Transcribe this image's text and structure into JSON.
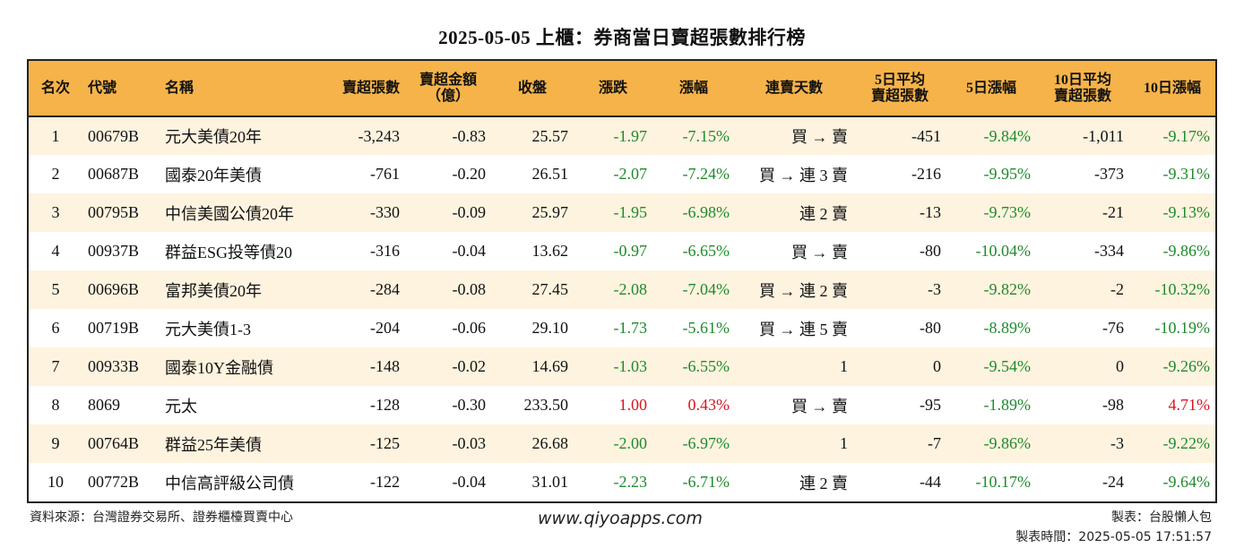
{
  "title": "2025-05-05 上櫃：券商當日賣超張數排行榜",
  "colors": {
    "header_bg": "#f5b34a",
    "row_alt_bg": "#fdf3df",
    "negative": "#1e8a2a",
    "positive": "#d8151c"
  },
  "headers": {
    "rank": "名次",
    "code": "代號",
    "name": "名稱",
    "sell_lots": "賣超張數",
    "sell_amount": "賣超金額\n（億）",
    "close": "收盤",
    "change": "漲跌",
    "change_pct": "漲幅",
    "streak": "連賣天數",
    "avg5_sell": "5日平均\n賣超張數",
    "chg5": "5日漲幅",
    "avg10_sell": "10日平均\n賣超張數",
    "chg10": "10日漲幅"
  },
  "rows": [
    {
      "rank": "1",
      "code": "00679B",
      "name": "元大美債20年",
      "sell_lots": "-3,243",
      "sell_amount": "-0.83",
      "close": "25.57",
      "change": "-1.97",
      "change_pct": "-7.15%",
      "streak": "買 → 賣",
      "avg5_sell": "-451",
      "chg5": "-9.84%",
      "avg10_sell": "-1,011",
      "chg10": "-9.17%"
    },
    {
      "rank": "2",
      "code": "00687B",
      "name": "國泰20年美債",
      "sell_lots": "-761",
      "sell_amount": "-0.20",
      "close": "26.51",
      "change": "-2.07",
      "change_pct": "-7.24%",
      "streak": "買 → 連 3 賣",
      "avg5_sell": "-216",
      "chg5": "-9.95%",
      "avg10_sell": "-373",
      "chg10": "-9.31%"
    },
    {
      "rank": "3",
      "code": "00795B",
      "name": "中信美國公債20年",
      "sell_lots": "-330",
      "sell_amount": "-0.09",
      "close": "25.97",
      "change": "-1.95",
      "change_pct": "-6.98%",
      "streak": "連 2 賣",
      "avg5_sell": "-13",
      "chg5": "-9.73%",
      "avg10_sell": "-21",
      "chg10": "-9.13%"
    },
    {
      "rank": "4",
      "code": "00937B",
      "name": "群益ESG投等債20",
      "sell_lots": "-316",
      "sell_amount": "-0.04",
      "close": "13.62",
      "change": "-0.97",
      "change_pct": "-6.65%",
      "streak": "買 → 賣",
      "avg5_sell": "-80",
      "chg5": "-10.04%",
      "avg10_sell": "-334",
      "chg10": "-9.86%"
    },
    {
      "rank": "5",
      "code": "00696B",
      "name": "富邦美債20年",
      "sell_lots": "-284",
      "sell_amount": "-0.08",
      "close": "27.45",
      "change": "-2.08",
      "change_pct": "-7.04%",
      "streak": "買 → 連 2 賣",
      "avg5_sell": "-3",
      "chg5": "-9.82%",
      "avg10_sell": "-2",
      "chg10": "-10.32%"
    },
    {
      "rank": "6",
      "code": "00719B",
      "name": "元大美債1-3",
      "sell_lots": "-204",
      "sell_amount": "-0.06",
      "close": "29.10",
      "change": "-1.73",
      "change_pct": "-5.61%",
      "streak": "買 → 連 5 賣",
      "avg5_sell": "-80",
      "chg5": "-8.89%",
      "avg10_sell": "-76",
      "chg10": "-10.19%"
    },
    {
      "rank": "7",
      "code": "00933B",
      "name": "國泰10Y金融債",
      "sell_lots": "-148",
      "sell_amount": "-0.02",
      "close": "14.69",
      "change": "-1.03",
      "change_pct": "-6.55%",
      "streak": "1",
      "avg5_sell": "0",
      "chg5": "-9.54%",
      "avg10_sell": "0",
      "chg10": "-9.26%"
    },
    {
      "rank": "8",
      "code": "8069",
      "name": "元太",
      "sell_lots": "-128",
      "sell_amount": "-0.30",
      "close": "233.50",
      "change": "1.00",
      "change_pct": "0.43%",
      "streak": "買 → 賣",
      "avg5_sell": "-95",
      "chg5": "-1.89%",
      "avg10_sell": "-98",
      "chg10": "4.71%"
    },
    {
      "rank": "9",
      "code": "00764B",
      "name": "群益25年美債",
      "sell_lots": "-125",
      "sell_amount": "-0.03",
      "close": "26.68",
      "change": "-2.00",
      "change_pct": "-6.97%",
      "streak": "1",
      "avg5_sell": "-7",
      "chg5": "-9.86%",
      "avg10_sell": "-3",
      "chg10": "-9.22%"
    },
    {
      "rank": "10",
      "code": "00772B",
      "name": "中信高評級公司債",
      "sell_lots": "-122",
      "sell_amount": "-0.04",
      "close": "31.01",
      "change": "-2.23",
      "change_pct": "-6.71%",
      "streak": "連 2 賣",
      "avg5_sell": "-44",
      "chg5": "-10.17%",
      "avg10_sell": "-24",
      "chg10": "-9.64%"
    }
  ],
  "footer": {
    "source": "資料來源：台灣證券交易所、證券櫃檯買賣中心",
    "website": "www.qiyoapps.com",
    "author": "製表：台股懶人包",
    "time": "製表時間：2025-05-05 17:51:57"
  }
}
